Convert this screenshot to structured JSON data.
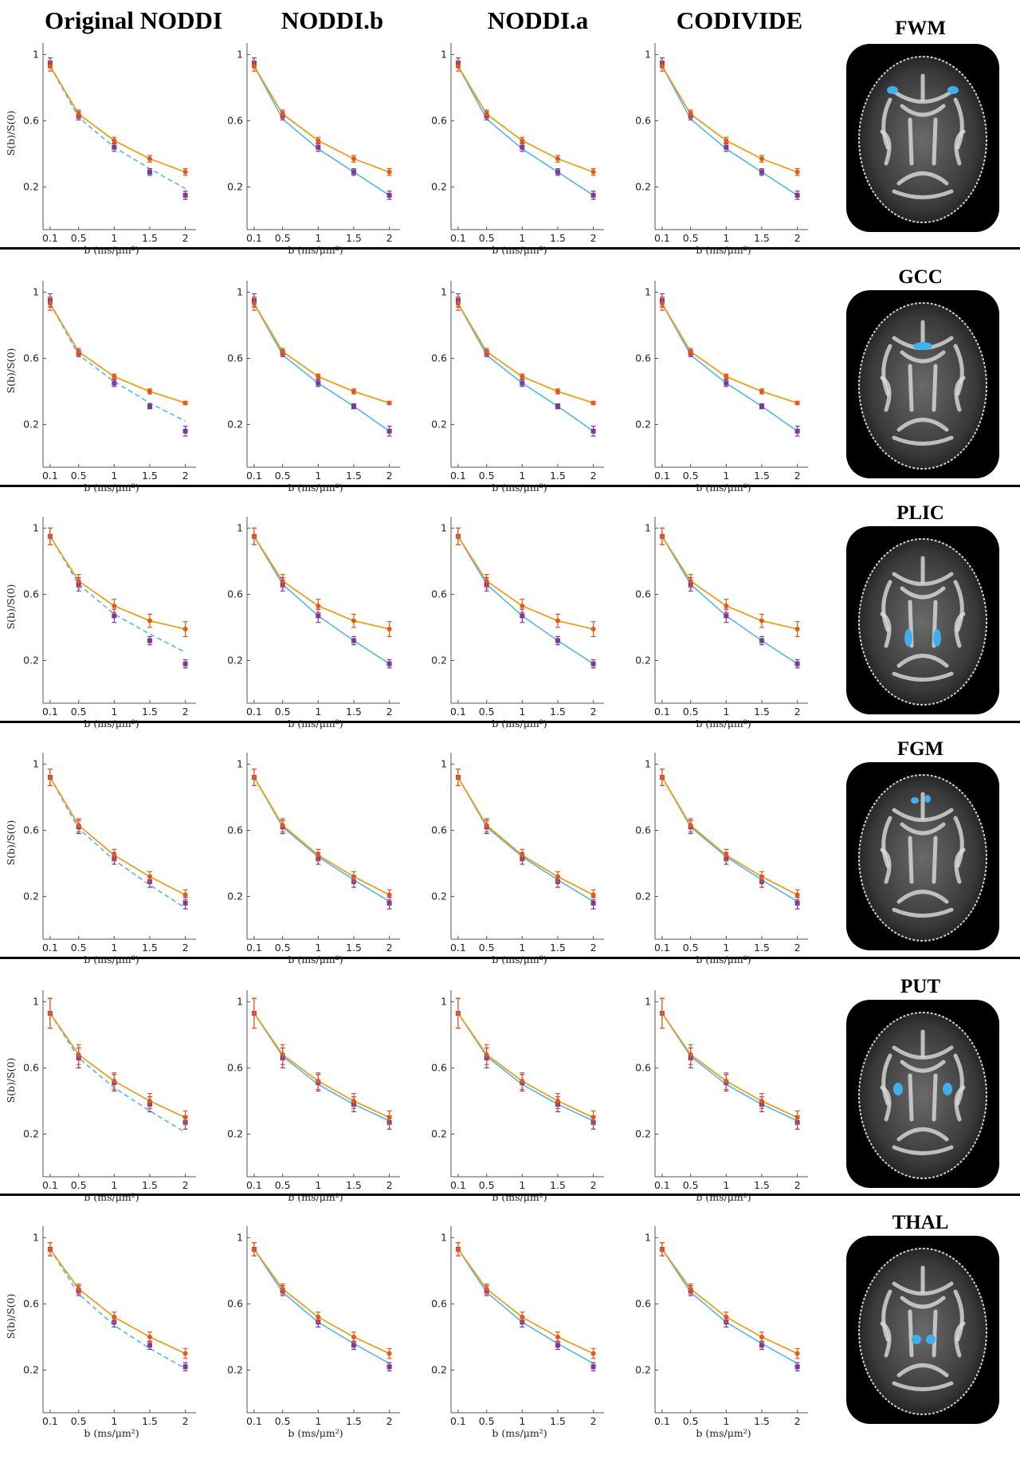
{
  "column_headers": [
    "Original NODDI",
    "NODDI.b",
    "NODDI.a",
    "CODIVIDE"
  ],
  "axis": {
    "xlabel": "b (ms/μm²)",
    "ylabel": "S(b)/S(0)",
    "xticks": [
      "0.1",
      "0.5",
      "1",
      "1.5",
      "2"
    ],
    "yticks": [
      "0.2",
      "0.6",
      "1"
    ]
  },
  "colors": {
    "model_line": "#5ab4e5",
    "orange_line": "#e8a020",
    "measured_marker": "#7b3a9c",
    "fitted_marker": "#e05a1a",
    "roi_highlight": "#3fb0ee"
  },
  "regions": [
    {
      "name": "FWM"
    },
    {
      "name": "GCC"
    },
    {
      "name": "PLIC"
    },
    {
      "name": "FGM"
    },
    {
      "name": "PUT"
    },
    {
      "name": "THAL"
    }
  ],
  "chart_data": [
    {
      "region": "FWM",
      "type": "line",
      "x": [
        0.1,
        0.5,
        1,
        1.5,
        2
      ],
      "xlim": [
        0,
        2.15
      ],
      "ylim": [
        0,
        1.05
      ],
      "measured": [
        0.95,
        0.63,
        0.44,
        0.29,
        0.15
      ],
      "measured_err": [
        0.03,
        0.025,
        0.025,
        0.02,
        0.025
      ],
      "orange_fit": [
        0.93,
        0.64,
        0.48,
        0.37,
        0.29
      ],
      "orange_err": [
        0.03,
        0.025,
        0.02,
        0.02,
        0.02
      ],
      "model_fits": {
        "Original NODDI": [
          0.93,
          0.62,
          0.44,
          0.31,
          0.19
        ],
        "NODDI.b": [
          0.93,
          0.61,
          0.43,
          0.29,
          0.15
        ],
        "NODDI.a": [
          0.93,
          0.61,
          0.43,
          0.29,
          0.15
        ],
        "CODIVIDE": [
          0.93,
          0.61,
          0.43,
          0.29,
          0.15
        ]
      }
    },
    {
      "region": "GCC",
      "type": "line",
      "x": [
        0.1,
        0.5,
        1,
        1.5,
        2
      ],
      "xlim": [
        0,
        2.15
      ],
      "ylim": [
        0,
        1.05
      ],
      "measured": [
        0.95,
        0.63,
        0.45,
        0.31,
        0.16
      ],
      "measured_err": [
        0.04,
        0.02,
        0.02,
        0.015,
        0.03
      ],
      "orange_fit": [
        0.93,
        0.64,
        0.49,
        0.4,
        0.33
      ],
      "orange_err": [
        0.04,
        0.02,
        0.015,
        0.015,
        0.01
      ],
      "model_fits": {
        "Original NODDI": [
          0.93,
          0.62,
          0.46,
          0.33,
          0.22
        ],
        "NODDI.b": [
          0.93,
          0.62,
          0.45,
          0.31,
          0.16
        ],
        "NODDI.a": [
          0.93,
          0.62,
          0.45,
          0.31,
          0.16
        ],
        "CODIVIDE": [
          0.93,
          0.62,
          0.45,
          0.31,
          0.16
        ]
      }
    },
    {
      "region": "PLIC",
      "type": "line",
      "x": [
        0.1,
        0.5,
        1,
        1.5,
        2
      ],
      "xlim": [
        0,
        2.15
      ],
      "ylim": [
        0,
        1.05
      ],
      "measured": [
        0.95,
        0.66,
        0.47,
        0.32,
        0.18
      ],
      "measured_err": [
        0.05,
        0.04,
        0.04,
        0.025,
        0.025
      ],
      "orange_fit": [
        0.95,
        0.68,
        0.53,
        0.44,
        0.39
      ],
      "orange_err": [
        0.05,
        0.04,
        0.04,
        0.04,
        0.045
      ],
      "model_fits": {
        "Original NODDI": [
          0.95,
          0.66,
          0.48,
          0.36,
          0.25
        ],
        "NODDI.b": [
          0.95,
          0.66,
          0.47,
          0.32,
          0.18
        ],
        "NODDI.a": [
          0.95,
          0.66,
          0.47,
          0.32,
          0.18
        ],
        "CODIVIDE": [
          0.95,
          0.66,
          0.47,
          0.32,
          0.18
        ]
      }
    },
    {
      "region": "FGM",
      "type": "line",
      "x": [
        0.1,
        0.5,
        1,
        1.5,
        2
      ],
      "xlim": [
        0,
        2.15
      ],
      "ylim": [
        0,
        1.05
      ],
      "measured": [
        0.92,
        0.62,
        0.43,
        0.29,
        0.16
      ],
      "measured_err": [
        0.05,
        0.04,
        0.035,
        0.035,
        0.035
      ],
      "orange_fit": [
        0.92,
        0.63,
        0.45,
        0.32,
        0.21
      ],
      "orange_err": [
        0.05,
        0.04,
        0.035,
        0.03,
        0.03
      ],
      "model_fits": {
        "Original NODDI": [
          0.92,
          0.61,
          0.42,
          0.27,
          0.13
        ],
        "NODDI.b": [
          0.92,
          0.62,
          0.44,
          0.3,
          0.17
        ],
        "NODDI.a": [
          0.92,
          0.62,
          0.44,
          0.3,
          0.17
        ],
        "CODIVIDE": [
          0.92,
          0.62,
          0.44,
          0.3,
          0.17
        ]
      }
    },
    {
      "region": "PUT",
      "type": "line",
      "x": [
        0.1,
        0.5,
        1,
        1.5,
        2
      ],
      "xlim": [
        0,
        2.15
      ],
      "ylim": [
        0,
        1.05
      ],
      "measured": [
        0.93,
        0.66,
        0.51,
        0.38,
        0.27
      ],
      "measured_err": [
        0.09,
        0.06,
        0.05,
        0.045,
        0.04
      ],
      "orange_fit": [
        0.93,
        0.68,
        0.52,
        0.4,
        0.3
      ],
      "orange_err": [
        0.09,
        0.06,
        0.05,
        0.045,
        0.04
      ],
      "model_fits": {
        "Original NODDI": [
          0.93,
          0.66,
          0.48,
          0.34,
          0.21
        ],
        "NODDI.b": [
          0.93,
          0.67,
          0.5,
          0.38,
          0.28
        ],
        "NODDI.a": [
          0.93,
          0.67,
          0.5,
          0.38,
          0.28
        ],
        "CODIVIDE": [
          0.93,
          0.67,
          0.5,
          0.38,
          0.28
        ]
      }
    },
    {
      "region": "THAL",
      "type": "line",
      "x": [
        0.1,
        0.5,
        1,
        1.5,
        2
      ],
      "xlim": [
        0,
        2.15
      ],
      "ylim": [
        0,
        1.05
      ],
      "measured": [
        0.93,
        0.68,
        0.49,
        0.35,
        0.22
      ],
      "measured_err": [
        0.04,
        0.03,
        0.03,
        0.025,
        0.025
      ],
      "orange_fit": [
        0.93,
        0.69,
        0.52,
        0.4,
        0.3
      ],
      "orange_err": [
        0.04,
        0.03,
        0.03,
        0.03,
        0.03
      ],
      "model_fits": {
        "Original NODDI": [
          0.93,
          0.66,
          0.47,
          0.33,
          0.21
        ],
        "NODDI.b": [
          0.93,
          0.67,
          0.49,
          0.36,
          0.24
        ],
        "NODDI.a": [
          0.93,
          0.67,
          0.49,
          0.36,
          0.24
        ],
        "CODIVIDE": [
          0.93,
          0.67,
          0.49,
          0.36,
          0.24
        ]
      }
    }
  ]
}
